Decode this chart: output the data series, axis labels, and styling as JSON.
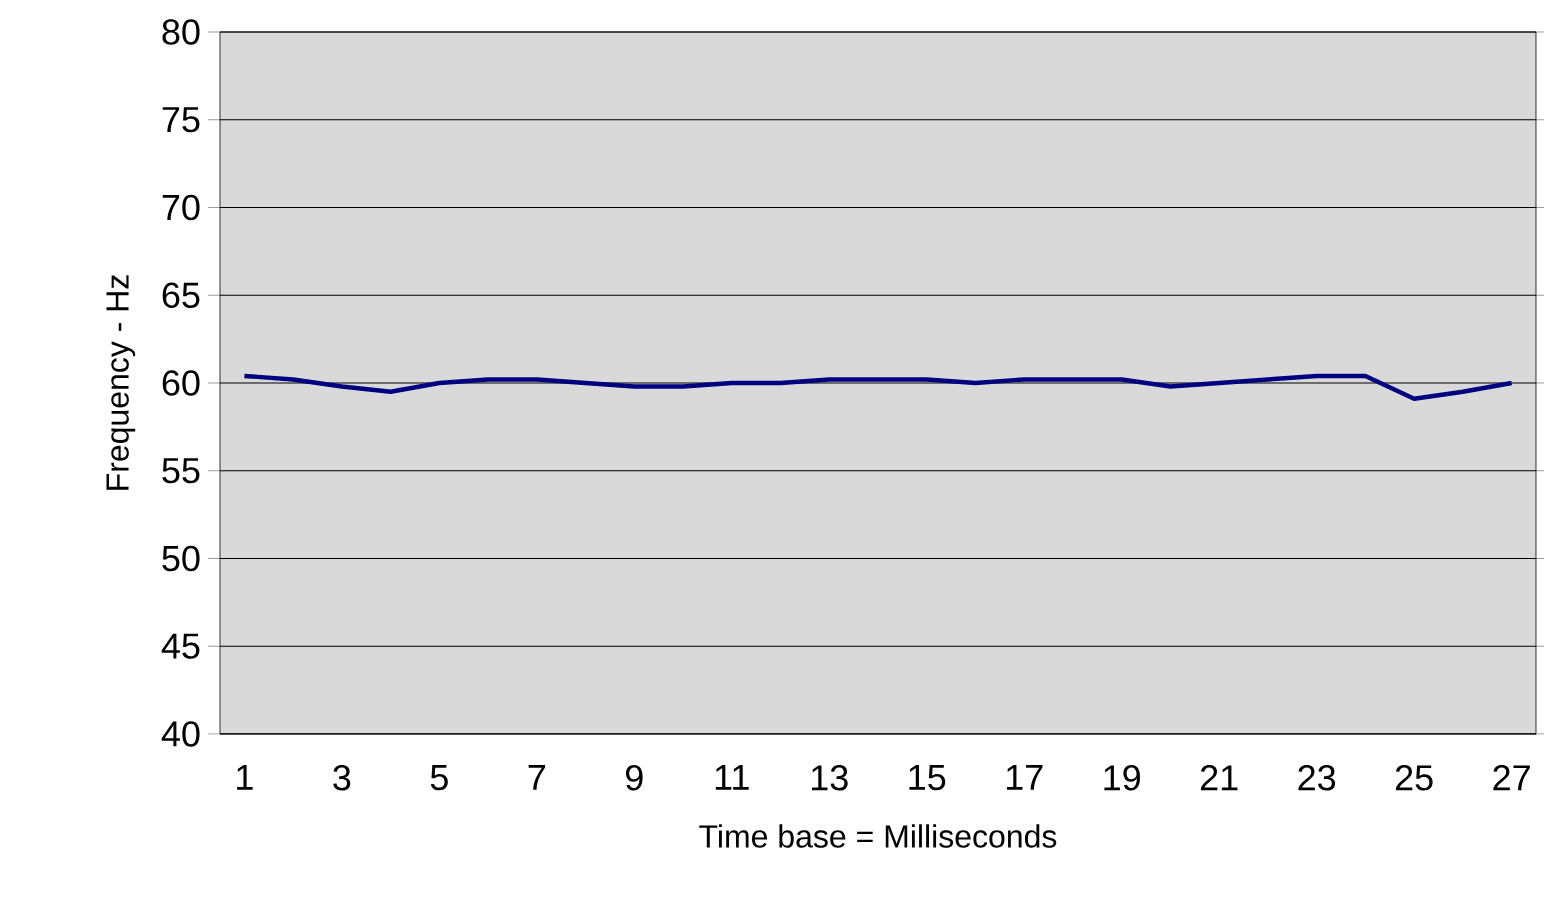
{
  "chart_data": {
    "type": "line",
    "xlabel": "Time base = Milliseconds",
    "ylabel": "Frequency - Hz",
    "categories": [
      "1",
      null,
      "3",
      null,
      "5",
      null,
      "7",
      null,
      "9",
      null,
      "11",
      null,
      "13",
      null,
      "15",
      null,
      "17",
      null,
      "19",
      null,
      "21",
      null,
      "23",
      null,
      "25",
      null,
      "27"
    ],
    "series": [
      {
        "color": "#000080",
        "values": [
          60.4,
          60.2,
          59.8,
          59.5,
          60.0,
          60.2,
          60.2,
          60.0,
          59.8,
          59.8,
          60.0,
          60.0,
          60.2,
          60.2,
          60.2,
          60.0,
          60.2,
          60.2,
          60.2,
          59.8,
          60.0,
          60.2,
          60.4,
          60.4,
          59.1,
          59.5,
          60.0
        ]
      }
    ],
    "ylim": [
      40,
      80
    ],
    "yticks": [
      40,
      45,
      50,
      55,
      60,
      65,
      70,
      75,
      80
    ],
    "grid": "y",
    "marker": "none",
    "line_style": "solid"
  }
}
